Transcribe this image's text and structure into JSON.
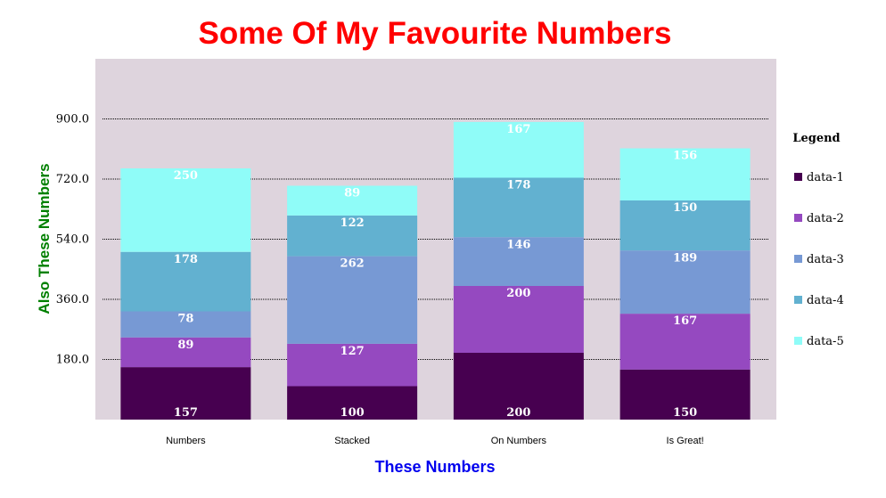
{
  "chart_data": {
    "type": "bar",
    "stacked": true,
    "title": "Some Of My Favourite Numbers",
    "xlabel": "These Numbers",
    "ylabel": "Also These Numbers",
    "categories": [
      "Numbers",
      "Stacked",
      "On Numbers",
      "Is Great!"
    ],
    "series": [
      {
        "name": "data-1",
        "values": [
          157,
          100,
          200,
          150
        ],
        "color": "#470050"
      },
      {
        "name": "data-2",
        "values": [
          89,
          127,
          200,
          167
        ],
        "color": "#9549c0"
      },
      {
        "name": "data-3",
        "values": [
          78,
          262,
          146,
          189
        ],
        "color": "#7799d4"
      },
      {
        "name": "data-4",
        "values": [
          178,
          122,
          178,
          150
        ],
        "color": "#62b1d0"
      },
      {
        "name": "data-5",
        "values": [
          250,
          89,
          167,
          156
        ],
        "color": "#8ffcf8"
      }
    ],
    "yticks": [
      "180.0",
      "360.0",
      "540.0",
      "720.0",
      "900.0"
    ],
    "ylim": [
      0,
      1080
    ],
    "legend_title": "Legend",
    "legend_position": "right",
    "grid": "horizontal dotted",
    "plot_background": "#ded4dd",
    "title_color": "#ff0000",
    "xlabel_color": "#0000ee",
    "ylabel_color": "#008000"
  }
}
